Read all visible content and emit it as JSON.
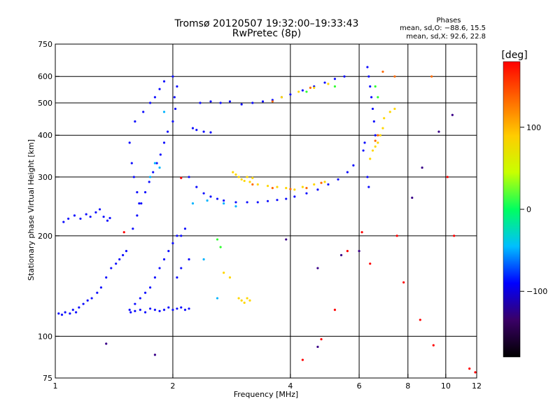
{
  "chart_data": {
    "type": "scatter",
    "title": "Tromsø 20120507 19:32:00–19:33:43",
    "subtitle": "RwPretec (8p)",
    "xlabel": "Frequency [MHz]",
    "ylabel": "Stationary phase Virtual Height [km]",
    "x_scale": "log",
    "y_scale": "log",
    "xlim": [
      1,
      12
    ],
    "ylim": [
      75,
      750
    ],
    "x_ticks": [
      1,
      2,
      4,
      6,
      8,
      10,
      12
    ],
    "x_tick_labels": [
      "1",
      "2",
      "4",
      "6",
      "8",
      "10",
      "12"
    ],
    "x_grid": [
      2,
      4,
      6,
      8,
      10
    ],
    "y_ticks": [
      75,
      100,
      200,
      300,
      400,
      500,
      600,
      750
    ],
    "y_tick_labels": [
      "75",
      "100",
      "200",
      "300",
      "400",
      "500",
      "600",
      "750"
    ],
    "y_grid": [
      100,
      200,
      300,
      400,
      500,
      600
    ],
    "grid": true,
    "colorbar": {
      "label": "[deg]",
      "range": [
        -180,
        180
      ],
      "ticks": [
        100,
        0,
        -100
      ],
      "tick_labels": [
        "100",
        "0",
        "−100"
      ],
      "colors": [
        "#000000",
        "#3a0066",
        "#0000ff",
        "#00bfff",
        "#00ff60",
        "#c8ff00",
        "#ffcc00",
        "#ff6600",
        "#ff0000"
      ]
    },
    "phases": {
      "title": "Phases",
      "line1": "mean, sd,O: −88.6, 15.5",
      "line2": "mean, sd,X:  92.6, 22.8"
    },
    "series": [
      {
        "mode": "O",
        "color": "#1010ff",
        "points": [
          [
            1.02,
            117
          ],
          [
            1.04,
            116
          ],
          [
            1.06,
            118
          ],
          [
            1.09,
            117
          ],
          [
            1.11,
            120
          ],
          [
            1.13,
            118
          ],
          [
            1.15,
            122
          ],
          [
            1.18,
            125
          ],
          [
            1.21,
            128
          ],
          [
            1.24,
            130
          ],
          [
            1.28,
            135
          ],
          [
            1.31,
            140
          ],
          [
            1.35,
            150
          ],
          [
            1.39,
            160
          ],
          [
            1.43,
            165
          ],
          [
            1.46,
            170
          ],
          [
            1.49,
            175
          ],
          [
            1.52,
            180
          ],
          [
            1.05,
            220
          ],
          [
            1.08,
            225
          ],
          [
            1.12,
            230
          ],
          [
            1.16,
            225
          ],
          [
            1.2,
            232
          ],
          [
            1.23,
            228
          ],
          [
            1.27,
            235
          ],
          [
            1.3,
            240
          ],
          [
            1.33,
            228
          ],
          [
            1.36,
            222
          ],
          [
            1.38,
            226
          ],
          [
            1.55,
            120
          ],
          [
            1.6,
            125
          ],
          [
            1.65,
            130
          ],
          [
            1.7,
            135
          ],
          [
            1.75,
            140
          ],
          [
            1.8,
            150
          ],
          [
            1.85,
            160
          ],
          [
            1.9,
            170
          ],
          [
            1.95,
            180
          ],
          [
            2.0,
            190
          ],
          [
            2.05,
            200
          ],
          [
            1.58,
            210
          ],
          [
            1.62,
            230
          ],
          [
            1.66,
            250
          ],
          [
            1.7,
            270
          ],
          [
            1.74,
            290
          ],
          [
            1.78,
            310
          ],
          [
            1.82,
            330
          ],
          [
            1.86,
            350
          ],
          [
            1.9,
            380
          ],
          [
            1.94,
            410
          ],
          [
            1.6,
            440
          ],
          [
            1.68,
            470
          ],
          [
            1.75,
            500
          ],
          [
            1.8,
            520
          ],
          [
            1.85,
            550
          ],
          [
            1.9,
            580
          ],
          [
            2.0,
            600
          ],
          [
            2.05,
            560
          ],
          [
            2.02,
            520
          ],
          [
            1.55,
            380
          ],
          [
            1.57,
            330
          ],
          [
            1.59,
            300
          ],
          [
            1.62,
            270
          ],
          [
            1.64,
            250
          ],
          [
            1.9,
            120
          ],
          [
            1.95,
            122
          ],
          [
            2.0,
            120
          ],
          [
            2.05,
            121
          ],
          [
            2.1,
            122
          ],
          [
            2.15,
            120
          ],
          [
            2.2,
            121
          ],
          [
            1.56,
            118
          ],
          [
            1.6,
            119
          ],
          [
            1.65,
            120
          ],
          [
            1.7,
            118
          ],
          [
            1.75,
            121
          ],
          [
            1.8,
            120
          ],
          [
            1.85,
            119
          ],
          [
            2.35,
            500
          ],
          [
            2.5,
            505
          ],
          [
            2.65,
            500
          ],
          [
            2.8,
            505
          ],
          [
            3.0,
            495
          ],
          [
            3.2,
            500
          ],
          [
            3.4,
            505
          ],
          [
            3.6,
            510
          ],
          [
            3.8,
            520
          ],
          [
            4.0,
            530
          ],
          [
            4.3,
            545
          ],
          [
            4.6,
            560
          ],
          [
            4.9,
            575
          ],
          [
            5.2,
            590
          ],
          [
            5.5,
            600
          ],
          [
            2.25,
            420
          ],
          [
            2.3,
            415
          ],
          [
            2.4,
            410
          ],
          [
            2.5,
            408
          ],
          [
            2.2,
            300
          ],
          [
            2.3,
            280
          ],
          [
            2.4,
            268
          ],
          [
            2.5,
            262
          ],
          [
            2.6,
            258
          ],
          [
            2.7,
            255
          ],
          [
            2.9,
            252
          ],
          [
            3.1,
            252
          ],
          [
            3.3,
            252
          ],
          [
            3.5,
            254
          ],
          [
            3.7,
            256
          ],
          [
            3.9,
            258
          ],
          [
            4.1,
            262
          ],
          [
            4.4,
            268
          ],
          [
            4.7,
            275
          ],
          [
            5.0,
            285
          ],
          [
            5.3,
            295
          ],
          [
            5.6,
            310
          ],
          [
            5.8,
            325
          ],
          [
            6.3,
            640
          ],
          [
            6.35,
            600
          ],
          [
            6.4,
            560
          ],
          [
            6.45,
            520
          ],
          [
            6.5,
            480
          ],
          [
            6.55,
            440
          ],
          [
            6.6,
            400
          ],
          [
            6.2,
            380
          ],
          [
            6.15,
            360
          ],
          [
            6.3,
            300
          ],
          [
            6.35,
            280
          ],
          [
            2.1,
            200
          ],
          [
            2.15,
            210
          ],
          [
            2.05,
            150
          ],
          [
            2.1,
            160
          ],
          [
            2.2,
            170
          ],
          [
            2.0,
            440
          ],
          [
            2.03,
            480
          ]
        ]
      },
      {
        "mode": "mixed",
        "color": "#00b4ff",
        "points": [
          [
            1.8,
            330
          ],
          [
            1.85,
            320
          ],
          [
            2.25,
            250
          ],
          [
            2.45,
            255
          ],
          [
            2.7,
            250
          ],
          [
            2.9,
            245
          ],
          [
            1.75,
            300
          ],
          [
            1.9,
            470
          ],
          [
            2.4,
            170
          ],
          [
            2.6,
            130
          ]
        ]
      },
      {
        "mode": "X",
        "color": "#ffd700",
        "points": [
          [
            2.85,
            310
          ],
          [
            2.9,
            305
          ],
          [
            2.95,
            300
          ],
          [
            3.0,
            295
          ],
          [
            3.05,
            292
          ],
          [
            3.1,
            300
          ],
          [
            3.15,
            290
          ],
          [
            3.2,
            298
          ],
          [
            3.3,
            285
          ],
          [
            3.5,
            282
          ],
          [
            3.7,
            280
          ],
          [
            3.9,
            278
          ],
          [
            4.1,
            275
          ],
          [
            4.3,
            280
          ],
          [
            4.6,
            285
          ],
          [
            4.9,
            290
          ],
          [
            2.95,
            130
          ],
          [
            3.0,
            128
          ],
          [
            3.05,
            126
          ],
          [
            3.1,
            130
          ],
          [
            3.15,
            128
          ],
          [
            2.7,
            155
          ],
          [
            2.8,
            150
          ],
          [
            6.4,
            340
          ],
          [
            6.5,
            360
          ],
          [
            6.6,
            370
          ],
          [
            6.7,
            380
          ],
          [
            6.8,
            400
          ],
          [
            6.9,
            420
          ],
          [
            6.95,
            450
          ],
          [
            7.2,
            470
          ],
          [
            7.4,
            480
          ],
          [
            3.8,
            520
          ],
          [
            4.2,
            540
          ],
          [
            4.6,
            555
          ],
          [
            5.0,
            570
          ]
        ]
      },
      {
        "mode": "X",
        "color": "#ff6a00",
        "points": [
          [
            3.2,
            285
          ],
          [
            3.6,
            278
          ],
          [
            4.0,
            276
          ],
          [
            4.4,
            278
          ],
          [
            4.8,
            288
          ],
          [
            6.7,
            400
          ],
          [
            6.6,
            385
          ],
          [
            3.6,
            505
          ],
          [
            4.5,
            555
          ],
          [
            6.9,
            620
          ],
          [
            7.4,
            600
          ],
          [
            9.2,
            600
          ]
        ]
      },
      {
        "mode": "X",
        "color": "#30ff30",
        "points": [
          [
            4.4,
            540
          ],
          [
            5.2,
            560
          ],
          [
            6.6,
            560
          ],
          [
            6.7,
            520
          ],
          [
            2.6,
            195
          ],
          [
            2.65,
            185
          ]
        ]
      },
      {
        "mode": "scattered",
        "color": "#ff0000",
        "points": [
          [
            1.5,
            205
          ],
          [
            2.1,
            298
          ],
          [
            4.3,
            85
          ],
          [
            4.8,
            98
          ],
          [
            5.2,
            120
          ],
          [
            5.6,
            180
          ],
          [
            6.1,
            205
          ],
          [
            6.4,
            165
          ],
          [
            7.5,
            200
          ],
          [
            7.8,
            145
          ],
          [
            8.6,
            112
          ],
          [
            9.3,
            94
          ],
          [
            10.1,
            300
          ],
          [
            10.5,
            200
          ],
          [
            11.5,
            80
          ],
          [
            11.9,
            78
          ]
        ]
      },
      {
        "mode": "scattered",
        "color": "#3a0088",
        "points": [
          [
            1.35,
            95
          ],
          [
            1.8,
            88
          ],
          [
            4.7,
            93
          ],
          [
            5.4,
            175
          ],
          [
            6.0,
            180
          ],
          [
            8.2,
            260
          ],
          [
            8.7,
            320
          ],
          [
            9.6,
            410
          ],
          [
            10.4,
            460
          ],
          [
            4.7,
            160
          ],
          [
            3.9,
            195
          ]
        ]
      }
    ]
  }
}
